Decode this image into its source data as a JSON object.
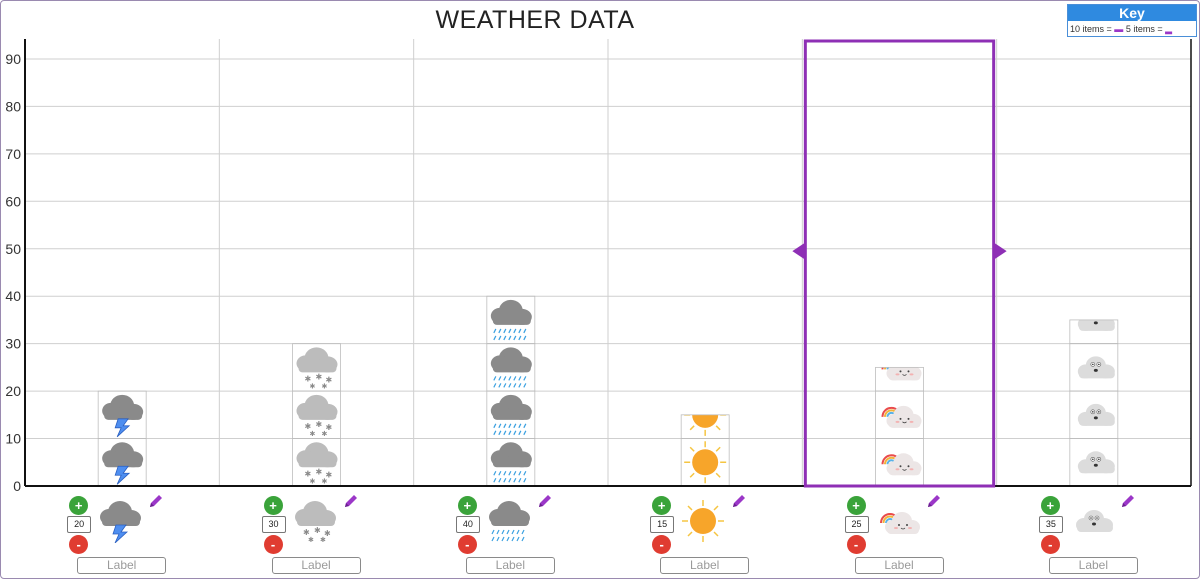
{
  "key": {
    "title": "Key",
    "text_ten": "10 items =",
    "text_five": "5 items ="
  },
  "chart_data": {
    "type": "bar",
    "title": "WEATHER DATA",
    "xlabel": "",
    "ylabel": "",
    "ylim": [
      0,
      95
    ],
    "yticks": [
      0,
      10,
      20,
      30,
      40,
      50,
      60,
      70,
      80,
      90
    ],
    "grid": true,
    "categories": [
      "Thunderstorm",
      "Snow",
      "Rain",
      "Sunny",
      "Rainbow",
      "Cloudy"
    ],
    "values": [
      20,
      30,
      40,
      15,
      25,
      35
    ],
    "icons": [
      "storm-cloud-icon",
      "snow-cloud-icon",
      "rain-cloud-icon",
      "sun-icon",
      "rainbow-cloud-icon",
      "grey-cloud-icon"
    ],
    "unit_per_icon": 10,
    "selected_index": 4,
    "label_placeholder": "Label",
    "accent_color": "#8e2fb5"
  },
  "colors": {
    "plus": "#3aa33a",
    "minus": "#e03c31",
    "selection": "#8e2fb5",
    "key_header": "#2f8ae0",
    "pencil": "#9b37c8"
  }
}
